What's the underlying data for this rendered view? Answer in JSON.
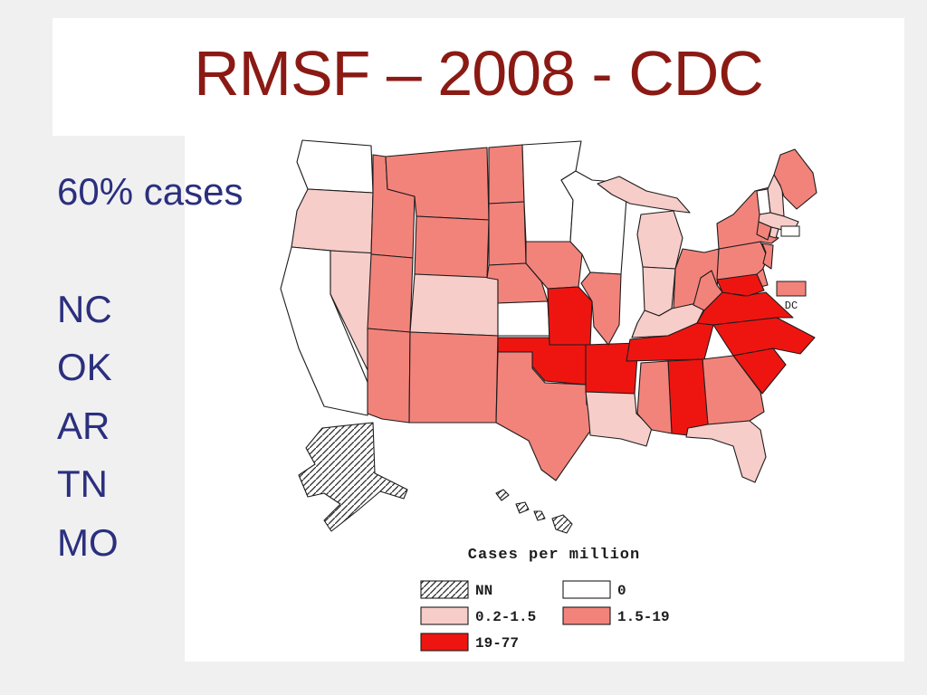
{
  "slide": {
    "title": "RMSF – 2008 - CDC",
    "side_note": "60% cases",
    "state_list": [
      "NC",
      "OK",
      "AR",
      "TN",
      "MO"
    ]
  },
  "map": {
    "legend_title": "Cases per million",
    "legend": [
      {
        "key": "nn",
        "label": "NN",
        "swatch": "hatched"
      },
      {
        "key": "c0",
        "label": "0",
        "swatch": "white"
      },
      {
        "key": "c1",
        "label": "0.2-1.5",
        "swatch": "light-pink"
      },
      {
        "key": "c2",
        "label": "1.5-19",
        "swatch": "salmon"
      },
      {
        "key": "c3",
        "label": "19-77",
        "swatch": "red"
      }
    ],
    "dc_callout_label": "DC",
    "states": {
      "WA": "c0",
      "OR": "c1",
      "CA": "c0",
      "NV": "c1",
      "ID": "c2",
      "MT": "c2",
      "WY": "c2",
      "UT": "c2",
      "CO": "c1",
      "AZ": "c2",
      "NM": "c2",
      "ND": "c2",
      "SD": "c2",
      "NE": "c2",
      "KS": "c0",
      "OK": "c3",
      "TX": "c2",
      "MN": "c0",
      "IA": "c2",
      "MO": "c3",
      "AR": "c3",
      "LA": "c1",
      "WI": "c0",
      "IL": "c2",
      "MI": "c1",
      "IN": "c1",
      "OH": "c2",
      "KY": "c1",
      "TN": "c3",
      "MS": "c2",
      "AL": "c3",
      "GA": "c2",
      "FL": "c1",
      "SC": "c3",
      "NC": "c3",
      "VA": "c3",
      "WV": "c2",
      "PA": "c2",
      "NY": "c2",
      "NJ": "c2",
      "DE": "c2",
      "MD": "c3",
      "DC": "c2",
      "VT": "c0",
      "NH": "c1",
      "ME": "c2",
      "MA": "c1",
      "CT": "c2",
      "RI": "c1",
      "AK": "nn",
      "HI": "nn"
    }
  },
  "colors": {
    "page_bg": "#F0F0F1",
    "slide_bg": "#FFFFFF",
    "title_text": "#8B1A14",
    "side_text": "#2B2F7D",
    "c0": "#FFFFFF",
    "c1": "#F7CDC9",
    "c2": "#F2837B",
    "c3": "#EE1511",
    "outline": "#1C1C1C"
  }
}
